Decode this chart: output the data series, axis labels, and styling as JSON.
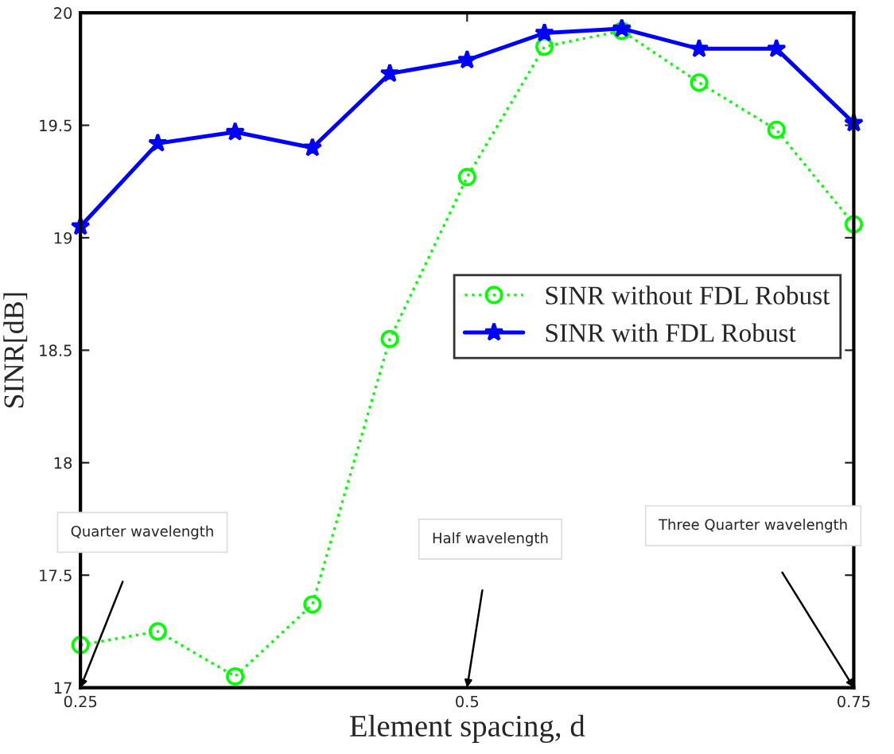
{
  "chart_data": {
    "type": "line",
    "xlabel": "Element spacing, d",
    "ylabel": "SINR[dB]",
    "x": [
      0.25,
      0.3,
      0.35,
      0.4,
      0.45,
      0.5,
      0.55,
      0.6,
      0.65,
      0.7,
      0.75
    ],
    "series": [
      {
        "name": "SINR without FDL Robust",
        "color": "#00ff00",
        "marker": "circle",
        "line_style": "dotted",
        "values": [
          17.19,
          17.25,
          17.05,
          17.37,
          18.55,
          19.27,
          19.85,
          19.92,
          19.69,
          19.48,
          19.06
        ]
      },
      {
        "name": "SINR with FDL Robust",
        "color": "#0000ff",
        "marker": "star",
        "line_style": "solid",
        "values": [
          19.05,
          19.42,
          19.47,
          19.4,
          19.73,
          19.79,
          19.91,
          19.93,
          19.84,
          19.84,
          19.51
        ]
      }
    ],
    "xlim": [
      0.25,
      0.75
    ],
    "xticks": [
      0.25,
      0.5,
      0.75
    ],
    "ylim": [
      17,
      20
    ],
    "yticks": [
      17,
      17.5,
      18,
      18.5,
      19,
      19.5,
      20
    ],
    "grid": false,
    "legend": "center right",
    "annotations": [
      "Quarter wavelength",
      "Half wavelength",
      "Three Quarter wavelength"
    ]
  }
}
